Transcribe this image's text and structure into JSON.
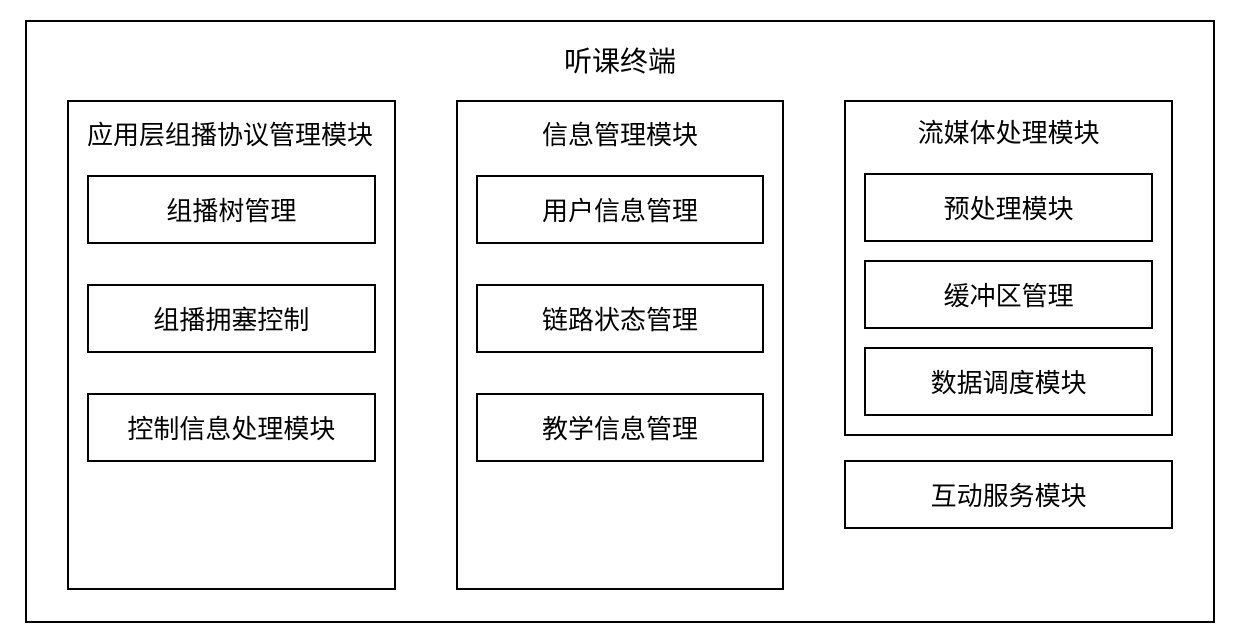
{
  "diagram": {
    "type": "block-diagram",
    "title": "听课终端",
    "border_color": "#000000",
    "background_color": "#ffffff",
    "text_color": "#000000",
    "font_family": "SimSun",
    "title_fontsize": 28,
    "module_title_fontsize": 26,
    "item_fontsize": 26,
    "border_width": 2,
    "columns": [
      {
        "title": "应用层组播协议管理模块",
        "title_align": "left",
        "items": [
          "组播树管理",
          "组播拥塞控制",
          "控制信息处理模块"
        ]
      },
      {
        "title": "信息管理模块",
        "title_align": "center",
        "items": [
          "用户信息管理",
          "链路状态管理",
          "教学信息管理"
        ]
      },
      {
        "title": "流媒体处理模块",
        "title_align": "center",
        "items": [
          "预处理模块",
          "缓冲区管理",
          "数据调度模块"
        ],
        "standalone_after": "互动服务模块"
      }
    ]
  }
}
